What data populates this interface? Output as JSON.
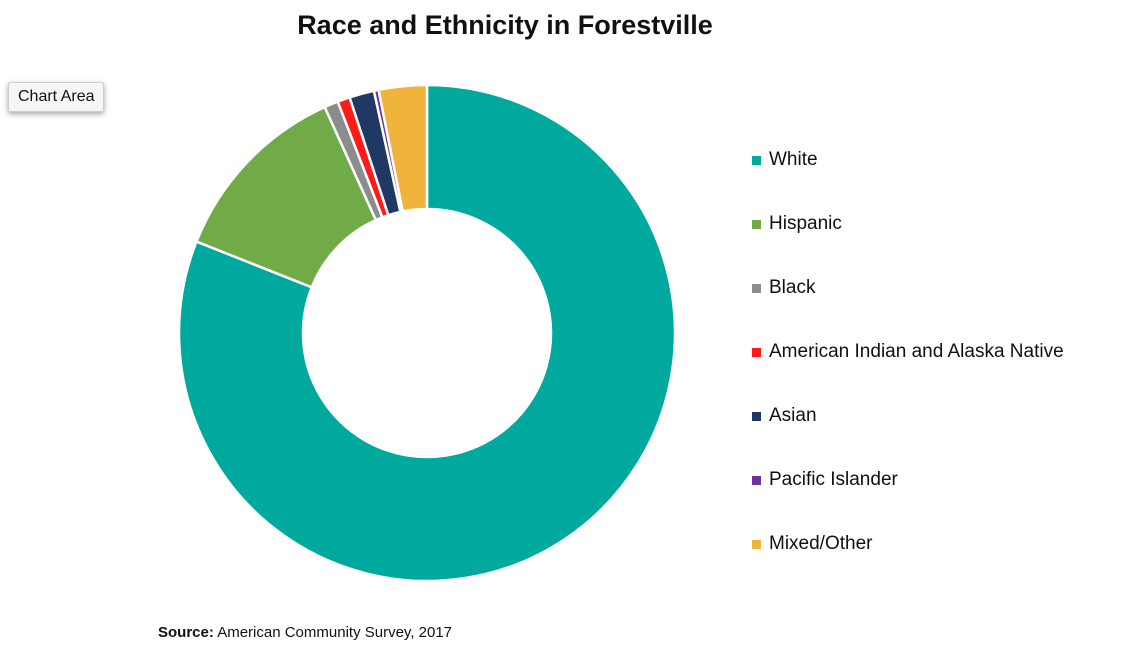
{
  "tooltip": {
    "label": "Chart Area"
  },
  "source": {
    "prefix": "Source:",
    "text": "American Community Survey, 2017"
  },
  "chart_data": {
    "type": "pie",
    "variant": "donut",
    "title": "Race and Ethnicity in Forestville",
    "legend_position": "right",
    "categories": [
      "White",
      "Hispanic",
      "Black",
      "American Indian and Alaska Native",
      "Asian",
      "Pacific Islander",
      "Mixed/Other"
    ],
    "values": [
      80.2,
      12.1,
      0.9,
      0.8,
      1.6,
      0.3,
      3.1
    ],
    "unit": "%",
    "colors": [
      "#00a99d",
      "#71ab48",
      "#8c8c8c",
      "#ff1a1a",
      "#1f3864",
      "#7030a0",
      "#f0b43c"
    ]
  }
}
